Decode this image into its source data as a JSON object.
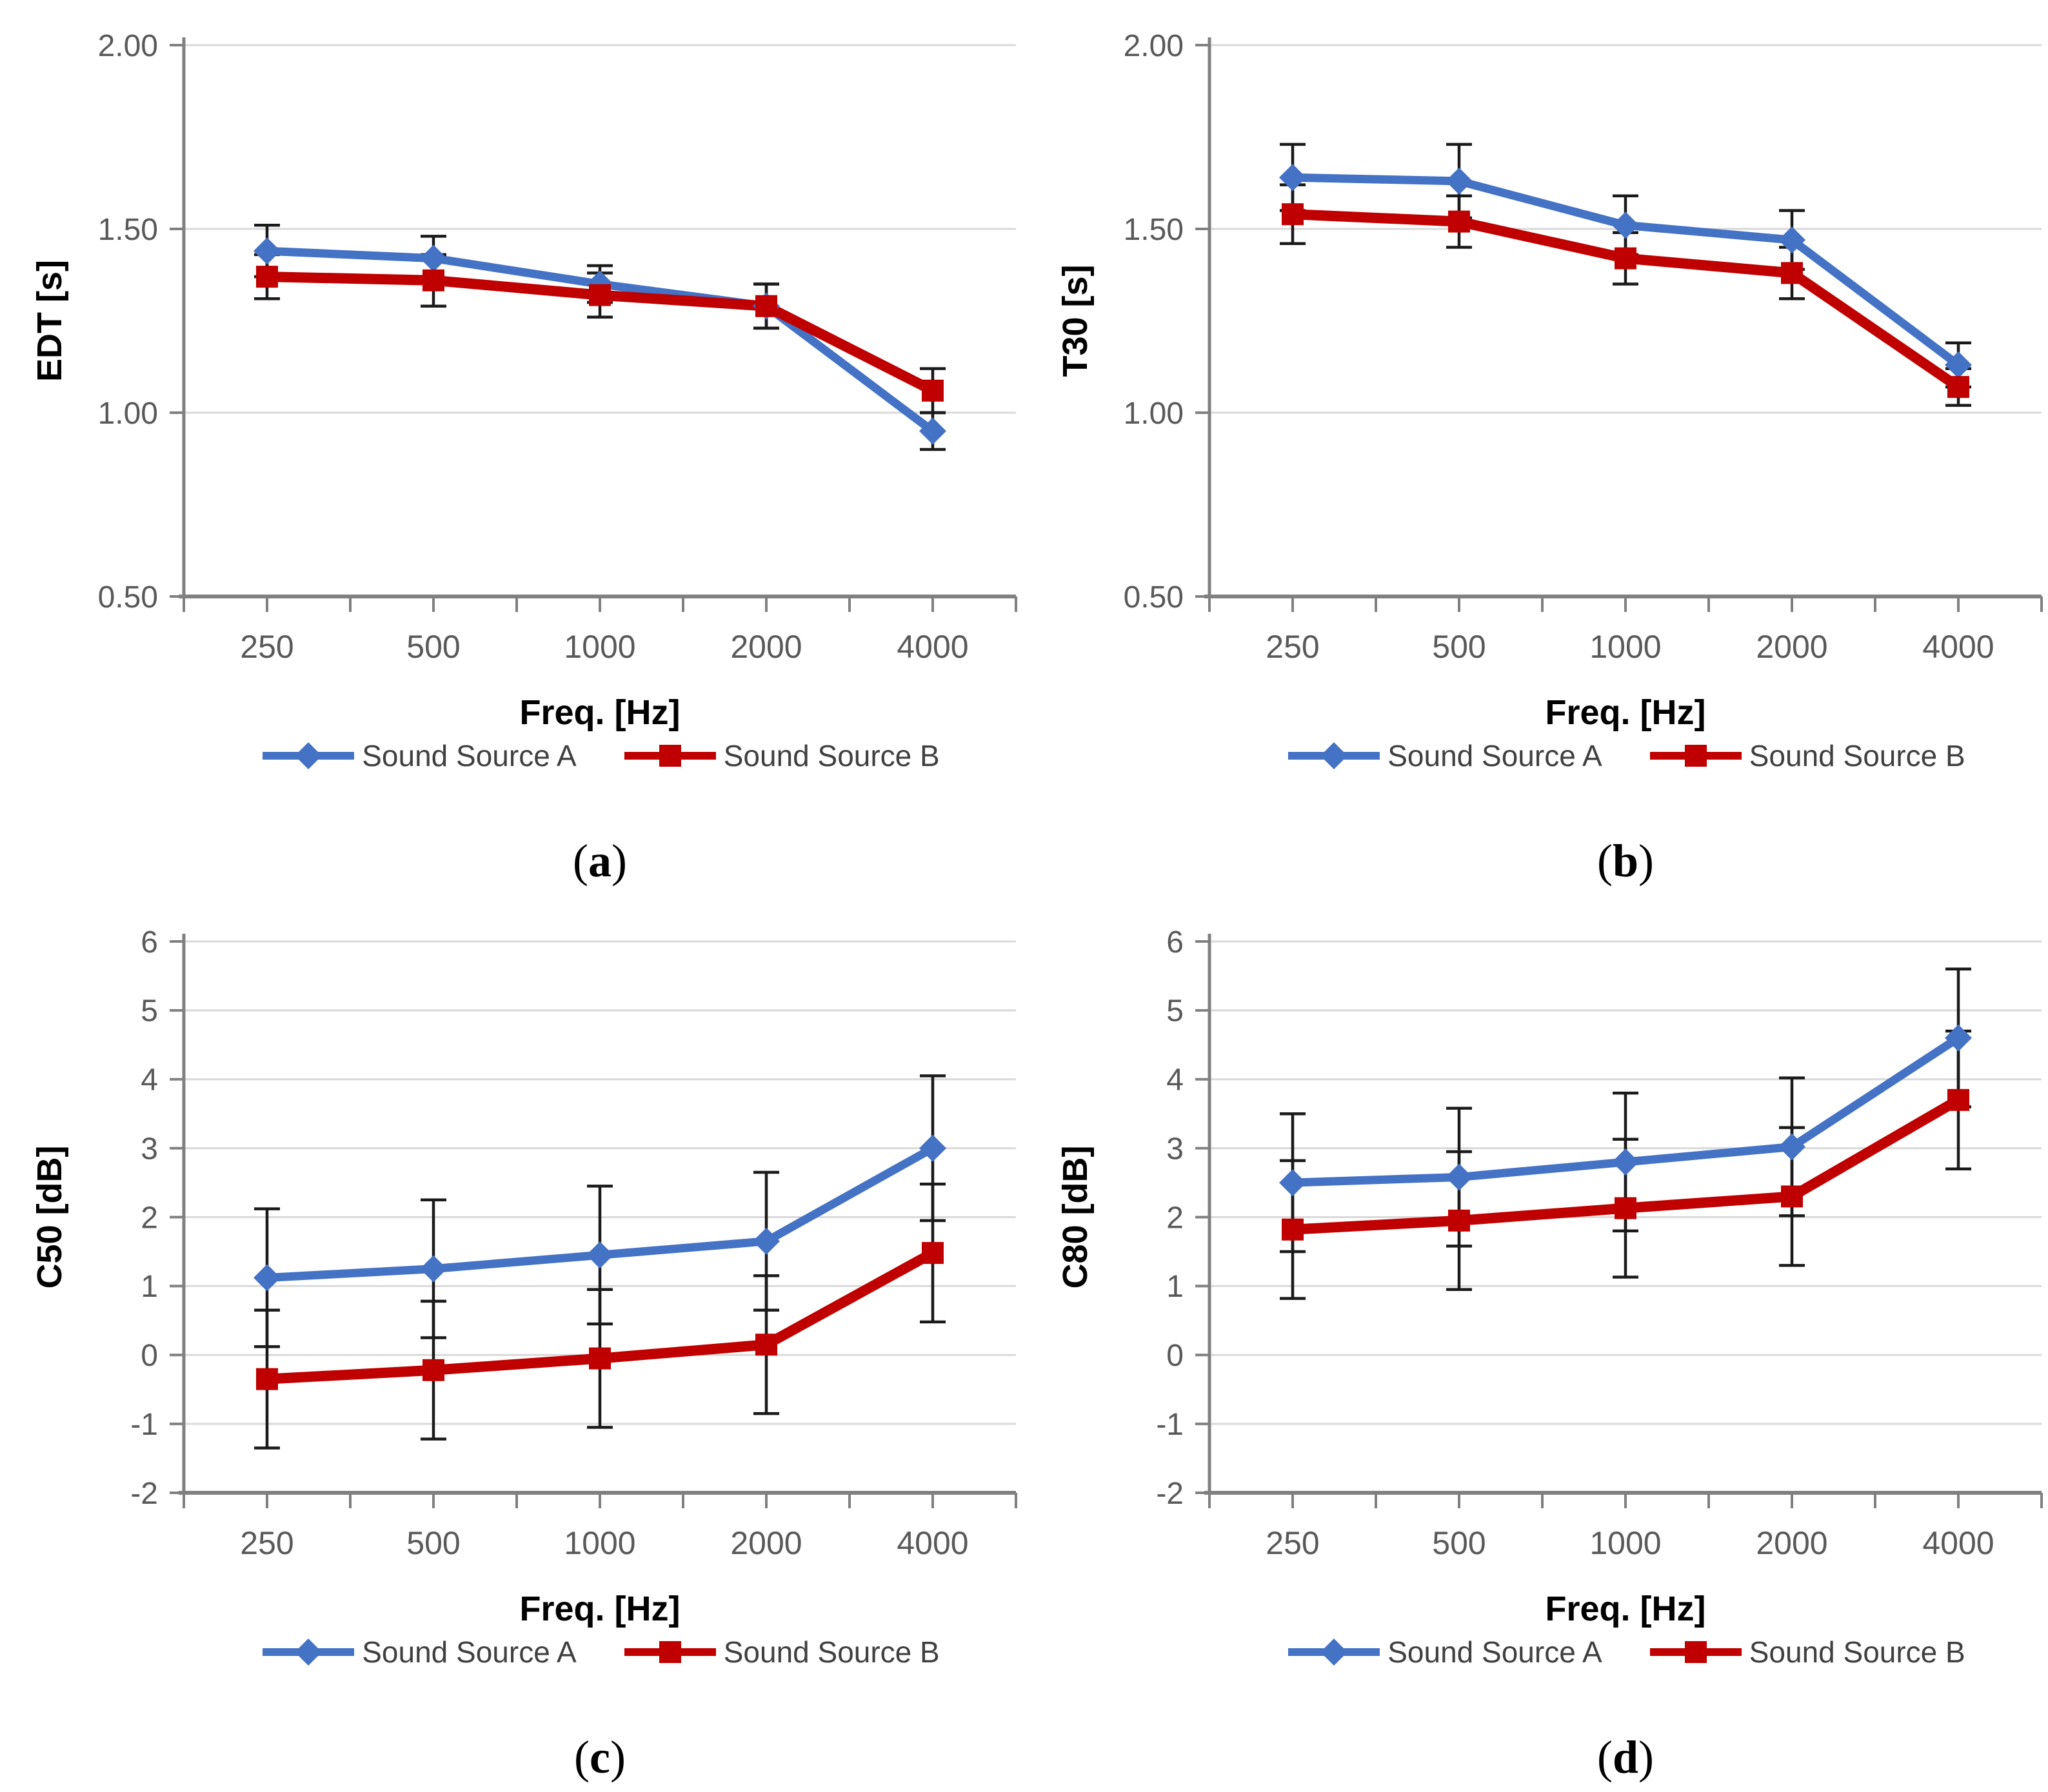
{
  "style": {
    "background": "#ffffff",
    "series_a_color": "#4472C4",
    "series_b_color": "#C00000",
    "grid_color": "#D9D9D9",
    "axis_color": "#808080",
    "tick_label_color": "#595959",
    "axis_title_color": "#000000",
    "legend_text_color": "#404040",
    "error_bar_color": "#1a1a1a"
  },
  "chart_data": [
    {
      "type": "line",
      "panel": "a",
      "ylabel": "EDT [s]",
      "xlabel": "Freq. [Hz]",
      "categories": [
        "250",
        "500",
        "1000",
        "2000",
        "4000"
      ],
      "ylim": [
        0.5,
        2.0
      ],
      "y_ticks": [
        {
          "v": 2.0,
          "label": "2.00"
        },
        {
          "v": 1.5,
          "label": "1.50"
        },
        {
          "v": 1.0,
          "label": "1.00"
        },
        {
          "v": 0.5,
          "label": "0.50"
        }
      ],
      "grid": true,
      "legend_position": "bottom",
      "series": [
        {
          "name": "Sound Source A",
          "marker": "diamond",
          "values": [
            1.44,
            1.42,
            1.35,
            1.29,
            0.95
          ],
          "errors": [
            0.07,
            0.06,
            0.05,
            0.06,
            0.05
          ]
        },
        {
          "name": "Sound Source B",
          "marker": "square",
          "values": [
            1.37,
            1.36,
            1.32,
            1.29,
            1.06
          ],
          "errors": [
            0.06,
            0.07,
            0.06,
            0.06,
            0.06
          ]
        }
      ],
      "caption": {
        "open": "(",
        "letter": "a",
        "close": ")"
      }
    },
    {
      "type": "line",
      "panel": "b",
      "ylabel": "T30 [s]",
      "xlabel": "Freq. [Hz]",
      "categories": [
        "250",
        "500",
        "1000",
        "2000",
        "4000"
      ],
      "ylim": [
        0.5,
        2.0
      ],
      "y_ticks": [
        {
          "v": 2.0,
          "label": "2.00"
        },
        {
          "v": 1.5,
          "label": "1.50"
        },
        {
          "v": 1.0,
          "label": "1.00"
        },
        {
          "v": 0.5,
          "label": "0.50"
        }
      ],
      "grid": true,
      "legend_position": "bottom",
      "series": [
        {
          "name": "Sound Source A",
          "marker": "diamond",
          "values": [
            1.64,
            1.63,
            1.51,
            1.47,
            1.13
          ],
          "errors": [
            0.09,
            0.1,
            0.08,
            0.08,
            0.06
          ]
        },
        {
          "name": "Sound Source B",
          "marker": "square",
          "values": [
            1.54,
            1.52,
            1.42,
            1.38,
            1.07
          ],
          "errors": [
            0.08,
            0.07,
            0.07,
            0.07,
            0.05
          ]
        }
      ],
      "caption": {
        "open": "(",
        "letter": "b",
        "close": ")"
      }
    },
    {
      "type": "line",
      "panel": "c",
      "ylabel": "C50 [dB]",
      "xlabel": "Freq. [Hz]",
      "categories": [
        "250",
        "500",
        "1000",
        "2000",
        "4000"
      ],
      "ylim": [
        -2,
        6
      ],
      "y_ticks": [
        {
          "v": 6,
          "label": "6"
        },
        {
          "v": 5,
          "label": "5"
        },
        {
          "v": 4,
          "label": "4"
        },
        {
          "v": 3,
          "label": "3"
        },
        {
          "v": 2,
          "label": "2"
        },
        {
          "v": 1,
          "label": "1"
        },
        {
          "v": 0,
          "label": "0"
        },
        {
          "v": -1,
          "label": "-1"
        },
        {
          "v": -2,
          "label": "-2"
        }
      ],
      "grid": true,
      "legend_position": "bottom",
      "series": [
        {
          "name": "Sound Source A",
          "marker": "diamond",
          "values": [
            1.12,
            1.25,
            1.45,
            1.65,
            3.0
          ],
          "errors": [
            1.0,
            1.0,
            1.0,
            1.0,
            1.05
          ]
        },
        {
          "name": "Sound Source B",
          "marker": "square",
          "values": [
            -0.35,
            -0.22,
            -0.05,
            0.15,
            1.48
          ],
          "errors": [
            1.0,
            1.0,
            1.0,
            1.0,
            1.0
          ]
        }
      ],
      "caption": {
        "open": "(",
        "letter": "c",
        "close": ")"
      }
    },
    {
      "type": "line",
      "panel": "d",
      "ylabel": "C80 [dB]",
      "xlabel": "Freq. [Hz]",
      "categories": [
        "250",
        "500",
        "1000",
        "2000",
        "4000"
      ],
      "ylim": [
        -2,
        6
      ],
      "y_ticks": [
        {
          "v": 6,
          "label": "6"
        },
        {
          "v": 5,
          "label": "5"
        },
        {
          "v": 4,
          "label": "4"
        },
        {
          "v": 3,
          "label": "3"
        },
        {
          "v": 2,
          "label": "2"
        },
        {
          "v": 1,
          "label": "1"
        },
        {
          "v": 0,
          "label": "0"
        },
        {
          "v": -1,
          "label": "-1"
        },
        {
          "v": -2,
          "label": "-2"
        }
      ],
      "grid": true,
      "legend_position": "bottom",
      "series": [
        {
          "name": "Sound Source A",
          "marker": "diamond",
          "values": [
            2.5,
            2.58,
            2.8,
            3.02,
            4.6
          ],
          "errors": [
            1.0,
            1.0,
            1.0,
            1.0,
            1.0
          ]
        },
        {
          "name": "Sound Source B",
          "marker": "square",
          "values": [
            1.82,
            1.95,
            2.13,
            2.3,
            3.7
          ],
          "errors": [
            1.0,
            1.0,
            1.0,
            1.0,
            1.0
          ]
        }
      ],
      "caption": {
        "open": "(",
        "letter": "d",
        "close": ")"
      }
    }
  ]
}
